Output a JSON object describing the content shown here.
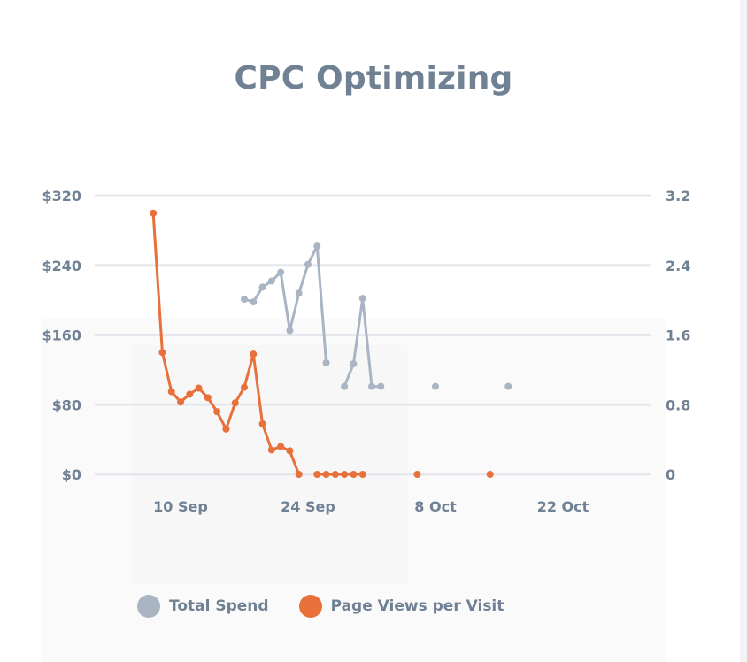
{
  "chart_data": {
    "type": "line",
    "title": "CPC Optimizing",
    "x_axis": {
      "ticks": [
        "10 Sep",
        "24 Sep",
        "8 Oct",
        "22 Oct"
      ],
      "tick_dates": [
        "2024-09-10",
        "2024-09-24",
        "2024-10-08",
        "2024-10-22"
      ],
      "range": [
        "2024-08-29",
        "2024-11-01"
      ]
    },
    "y_left": {
      "ticks": [
        "$0",
        "$80",
        "$160",
        "$240",
        "$320"
      ],
      "range": [
        0,
        320
      ]
    },
    "y_right": {
      "ticks": [
        "0",
        "0.8",
        "1.6",
        "2.4",
        "3.2"
      ],
      "range": [
        0,
        3.2
      ]
    },
    "grid": true,
    "legend_position": "bottom",
    "series": [
      {
        "name": "Total Spend",
        "axis": "left",
        "color": "#a9b5c2",
        "points": [
          {
            "x": "2024-09-17",
            "y": 201
          },
          {
            "x": "2024-09-18",
            "y": 198
          },
          {
            "x": "2024-09-19",
            "y": 215
          },
          {
            "x": "2024-09-20",
            "y": 222
          },
          {
            "x": "2024-09-21",
            "y": 232
          },
          {
            "x": "2024-09-22",
            "y": 165
          },
          {
            "x": "2024-09-23",
            "y": 208
          },
          {
            "x": "2024-09-24",
            "y": 241
          },
          {
            "x": "2024-09-25",
            "y": 262
          },
          {
            "x": "2024-09-26",
            "y": 128
          },
          {
            "x": "2024-09-27",
            "y": null
          },
          {
            "x": "2024-09-28",
            "y": 101
          },
          {
            "x": "2024-09-29",
            "y": 127
          },
          {
            "x": "2024-09-30",
            "y": 202
          },
          {
            "x": "2024-10-01",
            "y": 101
          },
          {
            "x": "2024-10-02",
            "y": 101
          },
          {
            "x": "2024-10-03",
            "y": null
          },
          {
            "x": "2024-10-08",
            "y": 101
          },
          {
            "x": "2024-10-09",
            "y": null
          },
          {
            "x": "2024-10-16",
            "y": 101
          }
        ]
      },
      {
        "name": "Page Views per Visit",
        "axis": "right",
        "color": "#e8703a",
        "points": [
          {
            "x": "2024-09-07",
            "y": 3.0
          },
          {
            "x": "2024-09-08",
            "y": 1.4
          },
          {
            "x": "2024-09-09",
            "y": 0.95
          },
          {
            "x": "2024-09-10",
            "y": 0.83
          },
          {
            "x": "2024-09-11",
            "y": 0.92
          },
          {
            "x": "2024-09-12",
            "y": 0.99
          },
          {
            "x": "2024-09-13",
            "y": 0.88
          },
          {
            "x": "2024-09-14",
            "y": 0.72
          },
          {
            "x": "2024-09-15",
            "y": 0.52
          },
          {
            "x": "2024-09-16",
            "y": 0.82
          },
          {
            "x": "2024-09-17",
            "y": 1.0
          },
          {
            "x": "2024-09-18",
            "y": 1.38
          },
          {
            "x": "2024-09-19",
            "y": 0.58
          },
          {
            "x": "2024-09-20",
            "y": 0.28
          },
          {
            "x": "2024-09-21",
            "y": 0.32
          },
          {
            "x": "2024-09-22",
            "y": 0.27
          },
          {
            "x": "2024-09-23",
            "y": 0.0
          },
          {
            "x": "2024-09-24",
            "y": null
          },
          {
            "x": "2024-09-25",
            "y": 0.0
          },
          {
            "x": "2024-09-26",
            "y": 0.0
          },
          {
            "x": "2024-09-27",
            "y": 0.0
          },
          {
            "x": "2024-09-28",
            "y": 0.0
          },
          {
            "x": "2024-09-29",
            "y": 0.0
          },
          {
            "x": "2024-09-30",
            "y": 0.0
          },
          {
            "x": "2024-10-01",
            "y": null
          },
          {
            "x": "2024-10-06",
            "y": 0.0
          },
          {
            "x": "2024-10-07",
            "y": null
          },
          {
            "x": "2024-10-14",
            "y": 0.0
          }
        ]
      }
    ]
  }
}
